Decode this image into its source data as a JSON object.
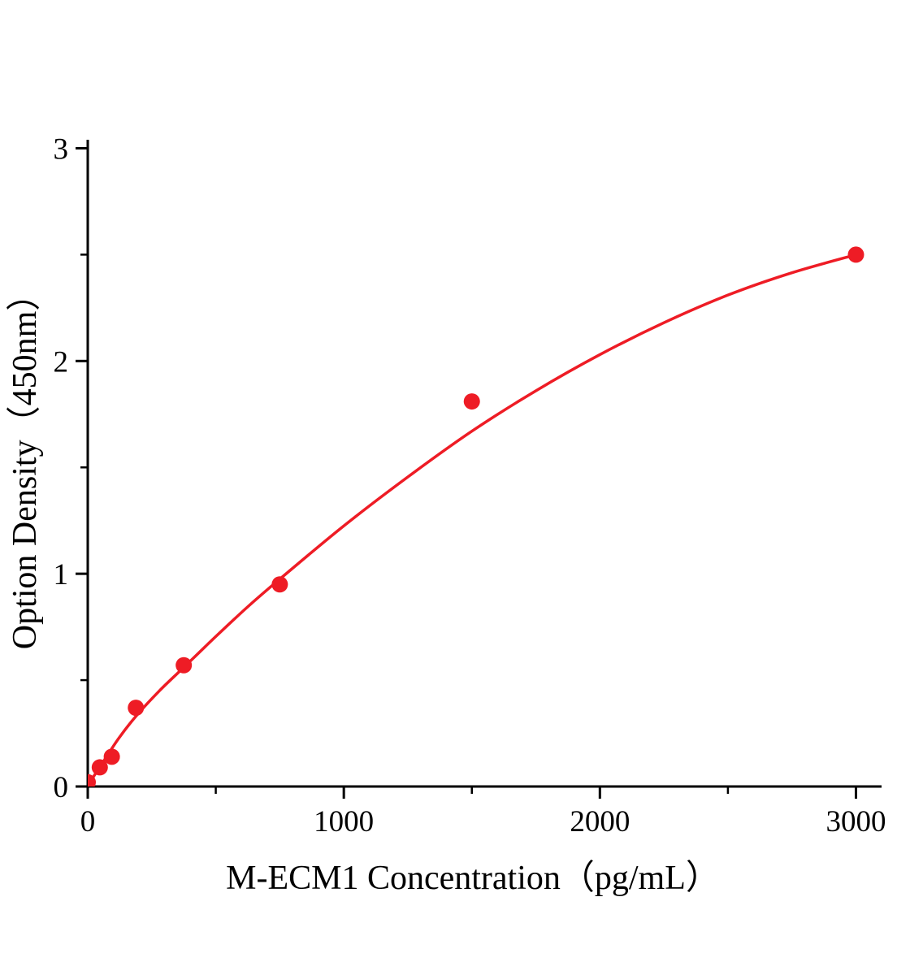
{
  "chart_data": {
    "type": "scatter",
    "title": "",
    "xlabel": "M-ECM1 Concentration（pg/mL）",
    "ylabel": "Option Density（450nm）",
    "xlim": [
      0,
      3100
    ],
    "ylim": [
      0,
      3.04
    ],
    "x_ticks": [
      0,
      1000,
      2000,
      3000
    ],
    "x_minor_ticks": [
      500,
      1500,
      2500
    ],
    "y_ticks": [
      0,
      1,
      2,
      3
    ],
    "y_minor_ticks": [
      0.5,
      1.5,
      2.5
    ],
    "grid": false,
    "legend": "none",
    "points": [
      [
        0,
        0.02
      ],
      [
        47,
        0.09
      ],
      [
        94,
        0.14
      ],
      [
        188,
        0.37
      ],
      [
        375,
        0.57
      ],
      [
        750,
        0.95
      ],
      [
        1500,
        1.81
      ],
      [
        3000,
        2.5
      ]
    ],
    "fit_curve": [
      [
        0,
        0.005
      ],
      [
        60,
        0.115
      ],
      [
        120,
        0.225
      ],
      [
        188,
        0.33
      ],
      [
        280,
        0.45
      ],
      [
        375,
        0.56
      ],
      [
        500,
        0.705
      ],
      [
        625,
        0.845
      ],
      [
        750,
        0.975
      ],
      [
        1000,
        1.225
      ],
      [
        1250,
        1.455
      ],
      [
        1500,
        1.67
      ],
      [
        1750,
        1.86
      ],
      [
        2000,
        2.03
      ],
      [
        2250,
        2.18
      ],
      [
        2500,
        2.31
      ],
      [
        2750,
        2.415
      ],
      [
        3000,
        2.5
      ]
    ],
    "marker_color": "#ee1c25",
    "line_color": "#ee1c25",
    "axis_color": "#000000"
  }
}
